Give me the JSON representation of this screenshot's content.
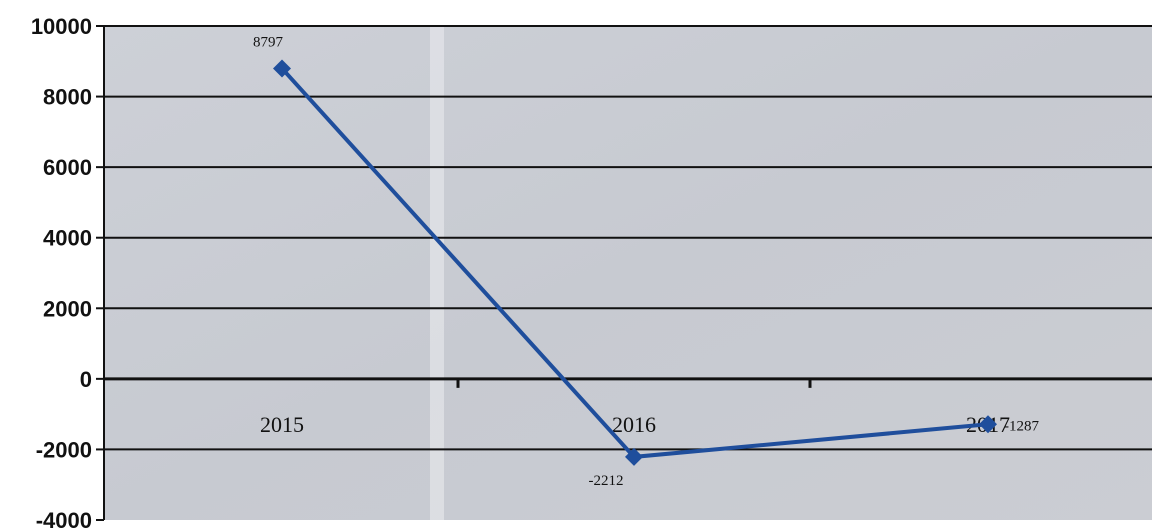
{
  "chart_data": {
    "type": "line",
    "title": "",
    "xlabel": "",
    "ylabel": "",
    "categories": [
      "2015",
      "2016",
      "2017"
    ],
    "series": [
      {
        "values": [
          8797,
          -2212,
          -1287
        ],
        "color": "#1f4e9c",
        "marker": "diamond"
      }
    ],
    "data_labels": [
      "8797",
      "-2212",
      "-1287"
    ],
    "ylim": [
      -4000,
      10000
    ],
    "yticks": [
      10000,
      8000,
      6000,
      4000,
      2000,
      0,
      -2000,
      -4000
    ],
    "ytick_labels": [
      "10000",
      "8000",
      "6000",
      "4000",
      "2000",
      "0",
      "-2000",
      "-4000"
    ],
    "grid": true,
    "legend": "none",
    "plot_background": "#c9ccd3",
    "gridline_color": "#111111",
    "category_labels_position": "below-zero-line"
  }
}
